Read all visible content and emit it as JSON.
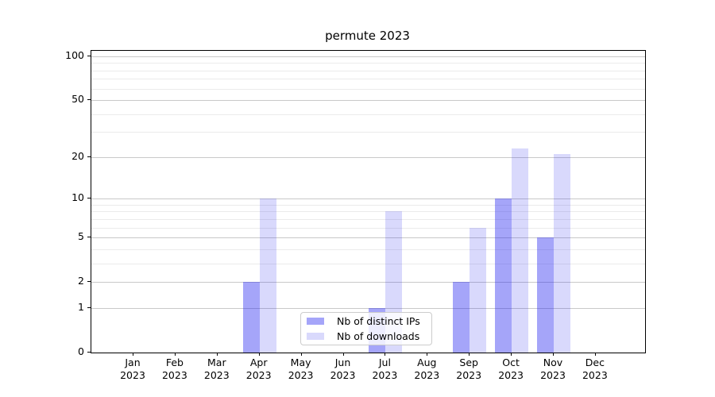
{
  "chart_data": {
    "type": "bar",
    "title": "permute 2023",
    "categories": [
      "Jan 2023",
      "Feb 2023",
      "Mar 2023",
      "Apr 2023",
      "May 2023",
      "Jun 2023",
      "Jul 2023",
      "Aug 2023",
      "Sep 2023",
      "Oct 2023",
      "Nov 2023",
      "Dec 2023"
    ],
    "series": [
      {
        "name": "Nb of distinct IPs",
        "color": "rgba(30,30,240,0.40)",
        "values": [
          0,
          0,
          0,
          2,
          0,
          0,
          1,
          0,
          2,
          10,
          5,
          0
        ]
      },
      {
        "name": "Nb of downloads",
        "color": "rgba(30,30,240,0.17)",
        "values": [
          0,
          0,
          0,
          10,
          0,
          0,
          8,
          0,
          6,
          23,
          21,
          0
        ]
      }
    ],
    "y_axis": {
      "scale": "log1p",
      "major_ticks": [
        0,
        1,
        2,
        5,
        10,
        20,
        50,
        100
      ],
      "minor_ticks": [
        3,
        4,
        6,
        7,
        8,
        9,
        30,
        40,
        60,
        70,
        80,
        90
      ],
      "max": 109
    },
    "x_axis": {
      "tick_year_layout": "two-line"
    },
    "legend": {
      "position": "lower-center",
      "frame": true
    },
    "grid": true,
    "colors": {
      "bar_dark": "#a6a6f9",
      "bar_light": "#d9d9fc",
      "grid_major": "#c9c9c9",
      "grid_minor": "#ebebeb"
    }
  }
}
